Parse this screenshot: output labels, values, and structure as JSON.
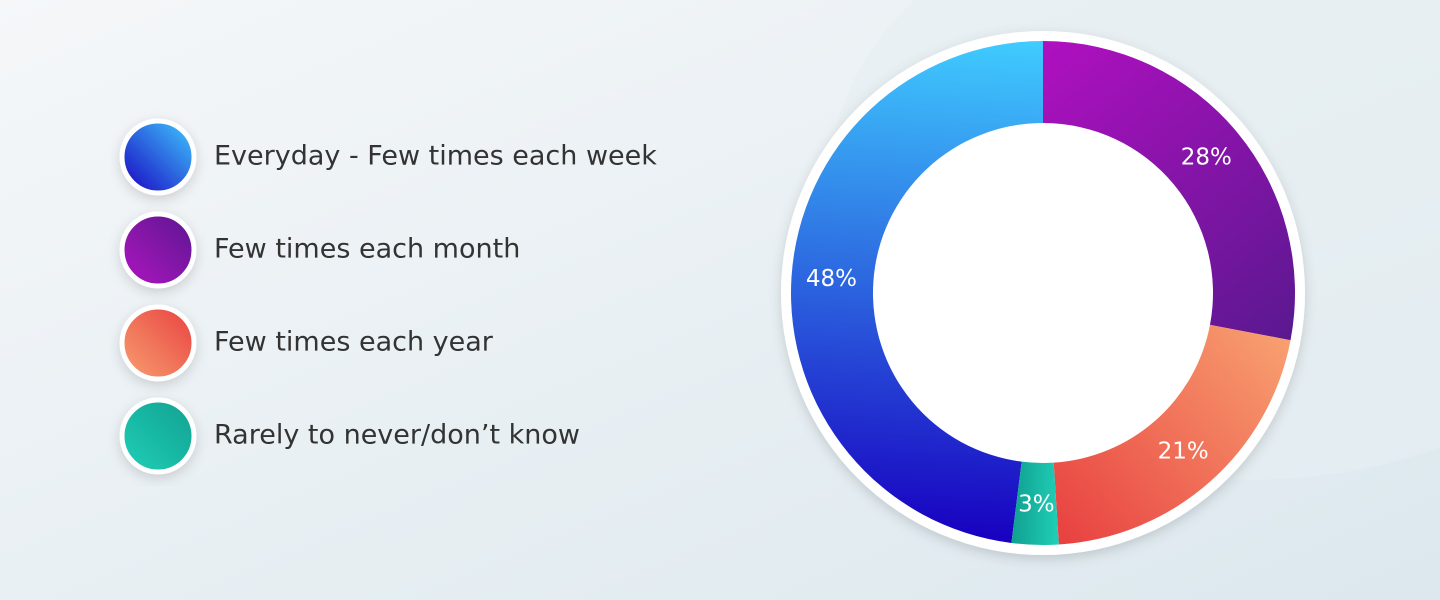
{
  "chart_data": {
    "type": "pie",
    "categories": [
      "Everyday - Few times each week",
      "Few times each month",
      "Few times each year",
      "Rarely to never/don’t know"
    ],
    "values": [
      48,
      28,
      21,
      3
    ],
    "value_labels": [
      "48%",
      "28%",
      "21%",
      "3%"
    ],
    "colors": [
      [
        "#40ccff",
        "#1800c0"
      ],
      [
        "#5a1890",
        "#b010c0"
      ],
      [
        "#e84040",
        "#f8a070"
      ],
      [
        "#10a090",
        "#20d0b8"
      ]
    ]
  }
}
